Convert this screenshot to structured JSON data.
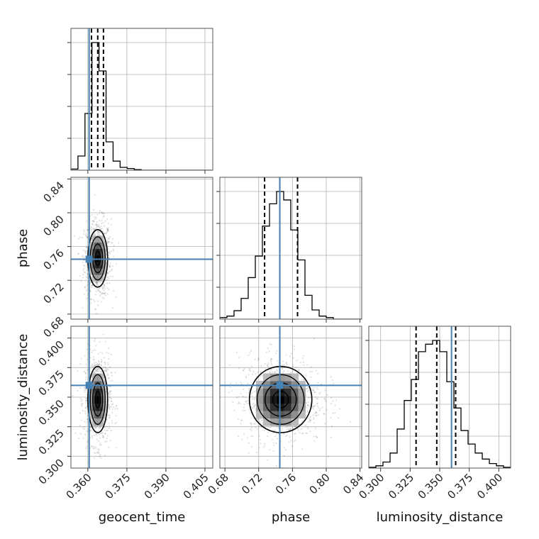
{
  "chart_data": {
    "type": "corner",
    "parameters": [
      "geocent_time",
      "phase",
      "luminosity_distance"
    ],
    "axes_labels": {
      "x": [
        "geocent_time",
        "phase",
        "luminosity_distance"
      ],
      "y": [
        "phase",
        "luminosity_distance"
      ]
    },
    "ranges": {
      "geocent_time": [
        0.3535,
        0.408
      ],
      "phase": [
        0.674,
        0.842
      ],
      "luminosity_distance": [
        0.29,
        0.41
      ]
    },
    "ticks": {
      "geocent_time": [
        "0.360",
        "0.375",
        "0.390",
        "0.405"
      ],
      "phase": [
        "0.68",
        "0.72",
        "0.76",
        "0.80",
        "0.84"
      ],
      "luminosity_distance": [
        "0.300",
        "0.325",
        "0.350",
        "0.375",
        "0.400"
      ]
    },
    "truths": {
      "geocent_time": 0.3605,
      "phase": 0.745,
      "luminosity_distance": 0.36
    },
    "quantiles": {
      "geocent_time": [
        0.3614,
        0.3638,
        0.366
      ],
      "phase": [
        0.727,
        0.745,
        0.766
      ],
      "luminosity_distance": [
        0.33,
        0.3475,
        0.3635
      ]
    },
    "histograms": {
      "geocent_time": {
        "edges": [
          0.3535,
          0.3562,
          0.3589,
          0.3616,
          0.3643,
          0.367,
          0.3697,
          0.3724,
          0.3751,
          0.3778,
          0.3805,
          0.3832,
          0.3859,
          0.3886,
          0.3913,
          0.394,
          0.3967,
          0.3994,
          0.4021,
          0.4048,
          0.4075
        ],
        "counts": [
          2,
          25,
          100,
          225,
          175,
          50,
          16,
          5,
          3,
          1,
          0,
          0,
          0,
          0,
          0,
          0,
          0,
          0,
          0,
          0
        ]
      },
      "phase": {
        "edges": [
          0.674,
          0.6824,
          0.6908,
          0.6992,
          0.7076,
          0.716,
          0.7244,
          0.7328,
          0.7412,
          0.7496,
          0.758,
          0.7664,
          0.7748,
          0.7832,
          0.7916,
          0.8,
          0.8084,
          0.8168,
          0.8252,
          0.8336,
          0.842
        ],
        "counts": [
          2,
          4,
          11,
          27,
          54,
          82,
          121,
          150,
          166,
          155,
          116,
          77,
          31,
          12,
          4,
          2,
          0,
          0,
          0,
          0
        ]
      },
      "luminosity_distance": {
        "edges": [
          0.29,
          0.296,
          0.302,
          0.308,
          0.314,
          0.32,
          0.326,
          0.332,
          0.338,
          0.344,
          0.35,
          0.356,
          0.362,
          0.368,
          0.374,
          0.38,
          0.386,
          0.392,
          0.398,
          0.404,
          0.41
        ],
        "counts": [
          1,
          3,
          8,
          20,
          52,
          90,
          118,
          155,
          165,
          170,
          155,
          115,
          80,
          50,
          32,
          20,
          12,
          6,
          3,
          1
        ]
      }
    },
    "density_blobs": {
      "geocent_time|phase": {
        "cx": 0.3638,
        "cy": 0.746,
        "sx": 0.0019,
        "sy": 0.017
      },
      "geocent_time|luminosity_distance": {
        "cx": 0.3638,
        "cy": 0.348,
        "sx": 0.0019,
        "sy": 0.014
      },
      "phase|luminosity_distance": {
        "cx": 0.746,
        "cy": 0.348,
        "sx": 0.0185,
        "sy": 0.014
      }
    },
    "grid": true,
    "colors": {
      "truth": "#4682b4",
      "hist": "#000000",
      "contour": "#000000",
      "grid": "#b0b0b0",
      "frame": "#555555"
    }
  }
}
